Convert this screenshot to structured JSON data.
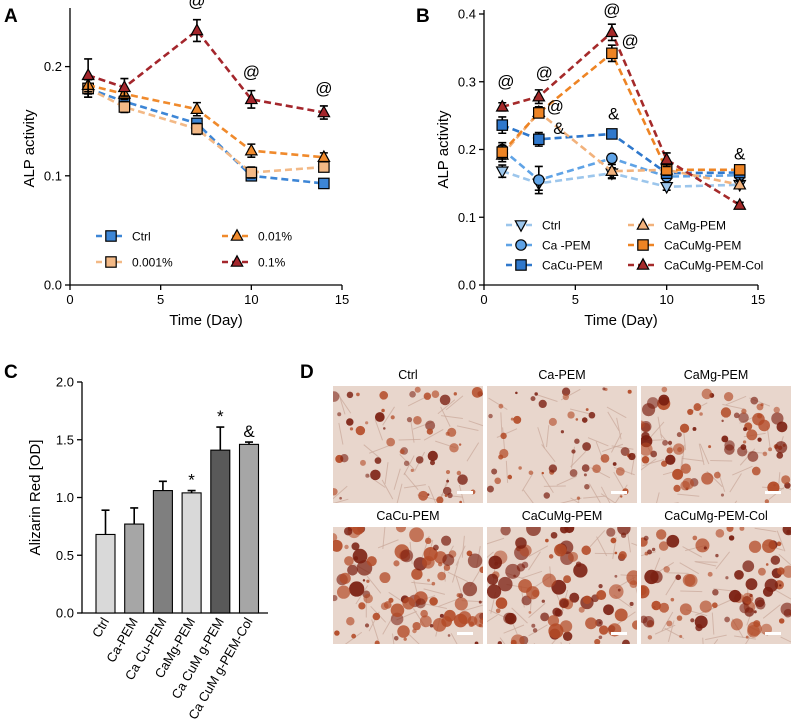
{
  "panel_letters": {
    "A": "A",
    "B": "B",
    "C": "C",
    "D": "D"
  },
  "colors": {
    "ctrl": "#3d86d6",
    "p001": "#f3b986",
    "p01": "#f08a2c",
    "p1": "#a4262c",
    "b_ctrl": "#9cc6ec",
    "b_ca": "#5fa3e6",
    "b_cacu": "#2f78cc",
    "b_camg": "#f2b27c",
    "b_cacumg": "#ee8424",
    "b_col": "#a52a2a",
    "stain_dark": "#7a1e10",
    "stain_mid": "#b34a26",
    "stain_bg": "#e8d6cc"
  },
  "chart_data": [
    {
      "id": "A",
      "type": "line",
      "xlabel": "Time (Day)",
      "ylabel": "ALP activity",
      "xlim": [
        0,
        15
      ],
      "ylim": [
        0,
        0.25
      ],
      "xticks": [
        0,
        5,
        10,
        15
      ],
      "yticks": [
        0.0,
        0.1,
        0.2
      ],
      "ytick_labels": [
        "0.0",
        "0.1",
        "0.2"
      ],
      "x": [
        1,
        3,
        7,
        10,
        14
      ],
      "series": [
        {
          "name": "Ctrl",
          "color_key": "ctrl",
          "marker": "square",
          "values": [
            0.18,
            0.168,
            0.148,
            0.1,
            0.093
          ],
          "err": [
            0.008,
            0.005,
            0.004,
            0.004,
            0.003
          ]
        },
        {
          "name": "0.001%",
          "color_key": "p001",
          "marker": "square",
          "values": [
            0.18,
            0.163,
            0.143,
            0.103,
            0.108
          ],
          "err": [
            0.008,
            0.005,
            0.005,
            0.005,
            0.003
          ]
        },
        {
          "name": "0.01%",
          "color_key": "p01",
          "marker": "triangle-up",
          "values": [
            0.183,
            0.175,
            0.161,
            0.123,
            0.117
          ],
          "err": [
            0.008,
            0.005,
            0.006,
            0.006,
            0.004
          ]
        },
        {
          "name": "0.1%",
          "color_key": "p1",
          "marker": "triangle-up",
          "values": [
            0.192,
            0.181,
            0.233,
            0.17,
            0.158
          ],
          "err": [
            0.015,
            0.008,
            0.01,
            0.008,
            0.006
          ]
        }
      ],
      "legend_order": [
        0,
        2,
        1,
        3
      ],
      "annotations": [
        {
          "text": "@",
          "x": 7,
          "y": 0.255
        },
        {
          "text": "@",
          "x": 10,
          "y": 0.19
        },
        {
          "text": "@",
          "x": 14,
          "y": 0.175
        }
      ]
    },
    {
      "id": "B",
      "type": "line",
      "xlabel": "Time (Day)",
      "ylabel": "ALP activity",
      "xlim": [
        0,
        15
      ],
      "ylim": [
        0,
        0.4
      ],
      "xticks": [
        0,
        5,
        10,
        15
      ],
      "yticks": [
        0.0,
        0.1,
        0.2,
        0.3,
        0.4
      ],
      "ytick_labels": [
        "0.0",
        "0.1",
        "0.2",
        "0.3",
        "0.4"
      ],
      "x": [
        1,
        3,
        7,
        10,
        14
      ],
      "series": [
        {
          "name": "Ctrl",
          "color_key": "b_ctrl",
          "marker": "triangle-down",
          "values": [
            0.168,
            0.15,
            0.165,
            0.145,
            0.148
          ],
          "err": [
            0.009,
            0.01,
            0.008,
            0.005,
            0.005
          ]
        },
        {
          "name": "Ca -PEM",
          "color_key": "b_ca",
          "marker": "circle",
          "values": [
            0.2,
            0.155,
            0.187,
            0.16,
            0.162
          ],
          "err": [
            0.01,
            0.02,
            0.006,
            0.006,
            0.005
          ]
        },
        {
          "name": "CaCu-PEM",
          "color_key": "b_cacu",
          "marker": "square",
          "values": [
            0.236,
            0.215,
            0.223,
            0.165,
            0.166
          ],
          "err": [
            0.012,
            0.01,
            0.006,
            0.006,
            0.005
          ]
        },
        {
          "name": "CaMg-PEM",
          "color_key": "b_camg",
          "marker": "triangle-up",
          "values": [
            0.192,
            0.255,
            0.168,
            0.17,
            0.148
          ],
          "err": [
            0.01,
            0.008,
            0.01,
            0.006,
            0.005
          ]
        },
        {
          "name": "CaCuMg-PEM",
          "color_key": "b_cacumg",
          "marker": "square",
          "values": [
            0.196,
            0.254,
            0.342,
            0.17,
            0.17
          ],
          "err": [
            0.01,
            0.007,
            0.012,
            0.008,
            0.006
          ]
        },
        {
          "name": "CaCuMg-PEM-Col",
          "color_key": "b_col",
          "marker": "triangle-up",
          "values": [
            0.263,
            0.278,
            0.373,
            0.185,
            0.118
          ],
          "err": [
            0.006,
            0.01,
            0.012,
            0.01,
            0.004
          ]
        }
      ],
      "legend_order": [
        0,
        3,
        1,
        4,
        2,
        5
      ],
      "annotations": [
        {
          "text": "@",
          "x": 1.2,
          "y": 0.292
        },
        {
          "text": "@",
          "x": 3.3,
          "y": 0.305
        },
        {
          "text": "@",
          "x": 3.9,
          "y": 0.255
        },
        {
          "text": "&",
          "x": 4.1,
          "y": 0.223
        },
        {
          "text": "@",
          "x": 7.0,
          "y": 0.398
        },
        {
          "text": "@",
          "x": 8.0,
          "y": 0.352
        },
        {
          "text": "&",
          "x": 7.1,
          "y": 0.244
        },
        {
          "text": "&",
          "x": 14.0,
          "y": 0.185
        }
      ]
    },
    {
      "id": "C",
      "type": "bar",
      "ylabel": "Alizarin Red [OD]",
      "ylim": [
        0,
        2.0
      ],
      "yticks": [
        0.0,
        0.5,
        1.0,
        1.5,
        2.0
      ],
      "ytick_labels": [
        "0.0",
        "0.5",
        "1.0",
        "1.5",
        "2.0"
      ],
      "categories": [
        "Ctrl",
        "Ca-PEM",
        "Ca Cu-PEM",
        "CaMg-PEM",
        "Ca CuM g-PEM",
        "Ca CuM g-PEM-Col"
      ],
      "values": [
        0.68,
        0.77,
        1.06,
        1.04,
        1.41,
        1.46
      ],
      "err": [
        0.21,
        0.14,
        0.08,
        0.02,
        0.2,
        0.02
      ],
      "bar_colors": [
        "#d9d9d9",
        "#a6a6a6",
        "#7f7f7f",
        "#d9d9d9",
        "#595959",
        "#a6a6a6"
      ],
      "annotations": [
        {
          "text": "*",
          "index": 3
        },
        {
          "text": "*",
          "index": 4
        },
        {
          "text": "&",
          "index": 5
        }
      ]
    }
  ],
  "micrographs": [
    {
      "label": "Ctrl",
      "density": 0.45,
      "seed": 11
    },
    {
      "label": "Ca-PEM",
      "density": 0.35,
      "seed": 23
    },
    {
      "label": "CaMg-PEM",
      "density": 0.75,
      "seed": 37
    },
    {
      "label": "CaCu-PEM",
      "density": 1.0,
      "seed": 41
    },
    {
      "label": "CaCuMg-PEM",
      "density": 0.95,
      "seed": 53
    },
    {
      "label": "CaCuMg-PEM-Col",
      "density": 0.85,
      "seed": 67
    }
  ]
}
